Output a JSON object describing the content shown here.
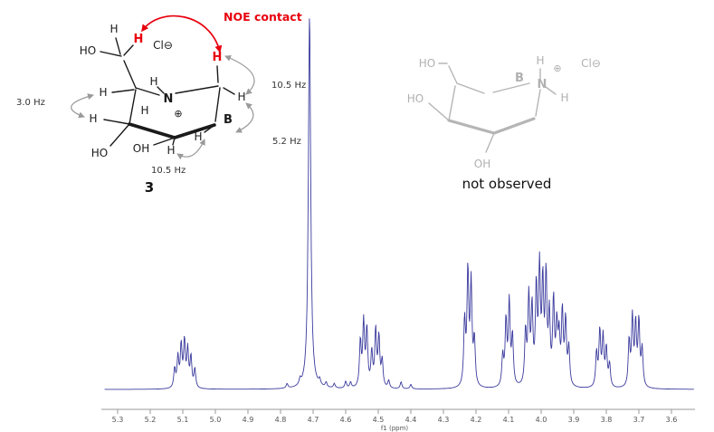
{
  "structure_left": {
    "noe_label": "NOE contact",
    "compound_number": "3",
    "chloride": "Cl⊖",
    "nitrogen": "N",
    "plus": "⊕",
    "h": "H",
    "ho": "HO",
    "oh": "OH",
    "proton_b": "B",
    "coupling_left": "3.0 Hz",
    "coupling_top_right": "10.5 Hz",
    "coupling_right": "5.2 Hz",
    "coupling_bottom": "10.5 Hz"
  },
  "structure_right": {
    "caption": "not observed",
    "chloride": "Cl⊖",
    "nitrogen": "N",
    "plus": "⊕",
    "h": "H",
    "ho": "HO",
    "oh": "OH",
    "proton_b": "B"
  },
  "colors": {
    "spectrum_line": "#3b3b9e",
    "noe_red": "#e8000d",
    "ghost_gray": "#b5b5b5",
    "axis_gray": "#888888"
  },
  "chart_data": {
    "type": "line",
    "title": "",
    "xlabel": "f1 (ppm)",
    "axis_reversed": true,
    "x_ticks": [
      5.3,
      5.2,
      5.1,
      5.0,
      4.9,
      4.8,
      4.7,
      4.6,
      4.5,
      4.4,
      4.3,
      4.2,
      4.1,
      4.0,
      3.9,
      3.8,
      3.7,
      3.6
    ],
    "x_range": [
      5.34,
      3.53
    ],
    "solvent_peak_ppm": 4.711,
    "line_color": "#3b3b9e",
    "peaks": [
      {
        "ppm": 5.125,
        "h": 0.05
      },
      {
        "ppm": 5.115,
        "h": 0.08
      },
      {
        "ppm": 5.105,
        "h": 0.11
      },
      {
        "ppm": 5.095,
        "h": 0.12
      },
      {
        "ppm": 5.085,
        "h": 0.1
      },
      {
        "ppm": 5.075,
        "h": 0.08
      },
      {
        "ppm": 5.063,
        "h": 0.05
      },
      {
        "ppm": 4.78,
        "h": 0.012
      },
      {
        "ppm": 4.74,
        "h": 0.015
      },
      {
        "ppm": 4.711,
        "h": 1.0,
        "w": 0.0042
      },
      {
        "ppm": 4.68,
        "h": 0.015
      },
      {
        "ppm": 4.66,
        "h": 0.013
      },
      {
        "ppm": 4.635,
        "h": 0.012
      },
      {
        "ppm": 4.6,
        "h": 0.018
      },
      {
        "ppm": 4.585,
        "h": 0.015
      },
      {
        "ppm": 4.555,
        "h": 0.12
      },
      {
        "ppm": 4.545,
        "h": 0.17
      },
      {
        "ppm": 4.535,
        "h": 0.15
      },
      {
        "ppm": 4.52,
        "h": 0.09
      },
      {
        "ppm": 4.508,
        "h": 0.15
      },
      {
        "ppm": 4.498,
        "h": 0.13
      },
      {
        "ppm": 4.488,
        "h": 0.07
      },
      {
        "ppm": 4.468,
        "h": 0.02
      },
      {
        "ppm": 4.43,
        "h": 0.018
      },
      {
        "ppm": 4.4,
        "h": 0.012
      },
      {
        "ppm": 4.235,
        "h": 0.17
      },
      {
        "ppm": 4.225,
        "h": 0.3
      },
      {
        "ppm": 4.215,
        "h": 0.27
      },
      {
        "ppm": 4.205,
        "h": 0.12
      },
      {
        "ppm": 4.118,
        "h": 0.08
      },
      {
        "ppm": 4.108,
        "h": 0.17
      },
      {
        "ppm": 4.098,
        "h": 0.22
      },
      {
        "ppm": 4.088,
        "h": 0.13
      },
      {
        "ppm": 4.048,
        "h": 0.14
      },
      {
        "ppm": 4.038,
        "h": 0.23
      },
      {
        "ppm": 4.028,
        "h": 0.2
      },
      {
        "ppm": 4.015,
        "h": 0.25
      },
      {
        "ppm": 4.005,
        "h": 0.3
      },
      {
        "ppm": 3.995,
        "h": 0.26
      },
      {
        "ppm": 3.985,
        "h": 0.28
      },
      {
        "ppm": 3.975,
        "h": 0.18
      },
      {
        "ppm": 3.962,
        "h": 0.22
      },
      {
        "ppm": 3.952,
        "h": 0.15
      },
      {
        "ppm": 3.945,
        "h": 0.12
      },
      {
        "ppm": 3.935,
        "h": 0.19
      },
      {
        "ppm": 3.925,
        "h": 0.17
      },
      {
        "ppm": 3.915,
        "h": 0.1
      },
      {
        "ppm": 3.83,
        "h": 0.09
      },
      {
        "ppm": 3.82,
        "h": 0.145
      },
      {
        "ppm": 3.81,
        "h": 0.13
      },
      {
        "ppm": 3.8,
        "h": 0.1
      },
      {
        "ppm": 3.79,
        "h": 0.06
      },
      {
        "ppm": 3.73,
        "h": 0.12
      },
      {
        "ppm": 3.72,
        "h": 0.18
      },
      {
        "ppm": 3.71,
        "h": 0.16
      },
      {
        "ppm": 3.7,
        "h": 0.17
      },
      {
        "ppm": 3.69,
        "h": 0.1
      }
    ]
  }
}
